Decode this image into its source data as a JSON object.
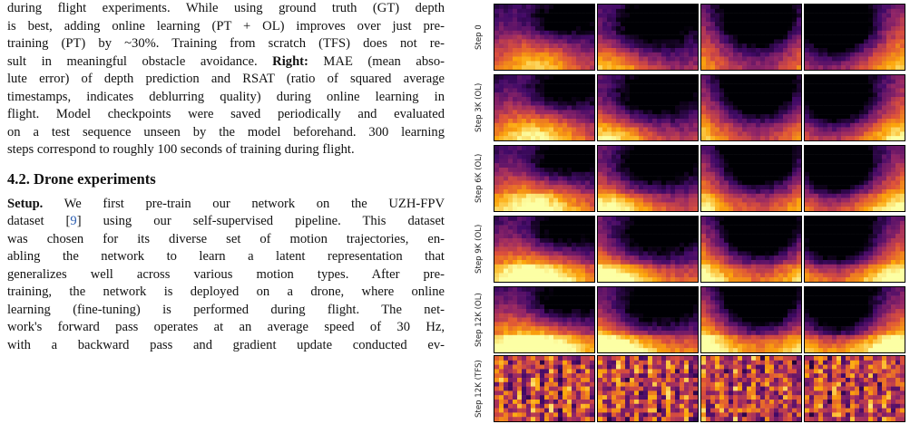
{
  "caption": {
    "line1": "during flight experiments. While using ground truth (GT) depth",
    "line2": "is best, adding online learning (PT + OL) improves over just pre-",
    "line3": "training (PT) by ~30%. Training from scratch (TFS) does not re-",
    "line4": "sult in meaningful obstacle avoidance.",
    "right_label": "Right:",
    "line4b": " MAE (mean abso-",
    "line5": "lute error) of depth prediction and RSAT (ratio of squared average",
    "line6": "timestamps, indicates deblurring quality) during online learning in",
    "line7": "flight. Model checkpoints were saved periodically and evaluated",
    "line8": "on a test sequence unseen by the model beforehand. 300 learning",
    "line9": "steps correspond to roughly 100 seconds of training during flight."
  },
  "section": {
    "title": "4.2. Drone experiments",
    "setup_label": "Setup.",
    "p1a": "  We first pre-train our network on the UZH-FPV",
    "p1b_pre": "dataset [",
    "p1b_ref": "9",
    "p1b_post": "] using our self-supervised pipeline. This dataset",
    "p1c": "was chosen for its diverse set of motion trajectories, en-",
    "p1d": "abling the network to learn a latent representation that",
    "p1e": "generalizes well across various motion types. After pre-",
    "p1f": "training, the network is deployed on a drone, where online",
    "p1g": "learning (fine-tuning) is performed during flight. The net-",
    "p1h": "work's forward pass operates at an average speed of 30 Hz,",
    "p1i": "with a backward pass and gradient update conducted ev-"
  },
  "figure": {
    "rows": [
      "Step 0",
      "Step 3K (OL)",
      "Step 6K (OL)",
      "Step 9K (OL)",
      "Step 12K (OL)",
      "Step 12K (TFS)"
    ],
    "columns": 4,
    "colormap": [
      "#000004",
      "#420a68",
      "#932667",
      "#dd513a",
      "#fca50a",
      "#fcffa4"
    ]
  }
}
